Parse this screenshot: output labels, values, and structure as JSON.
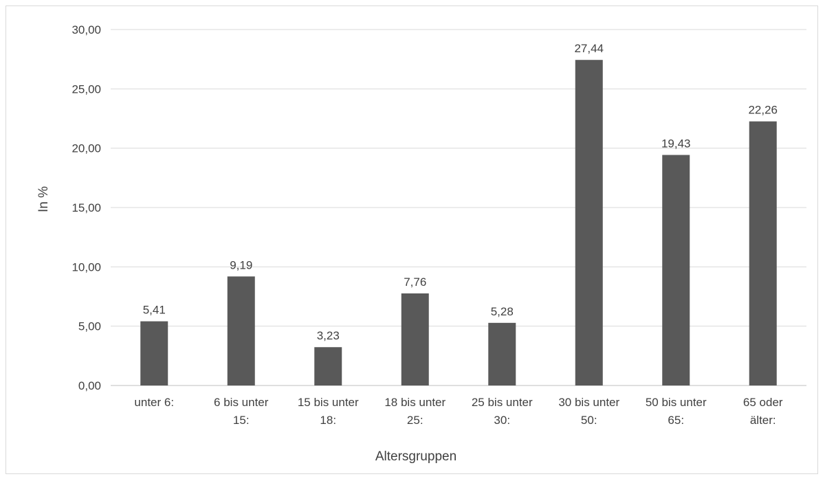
{
  "chart_data": {
    "type": "bar",
    "title": "",
    "xlabel": "Altersgruppen",
    "ylabel": "In %",
    "ylim": [
      0,
      30
    ],
    "yticks": [
      "0,00",
      "5,00",
      "10,00",
      "15,00",
      "20,00",
      "25,00",
      "30,00"
    ],
    "ytick_values": [
      0,
      5,
      10,
      15,
      20,
      25,
      30
    ],
    "grid": true,
    "legend": "none",
    "bar_color": "#595959",
    "categories": [
      [
        "unter 6:"
      ],
      [
        "6 bis unter",
        "15:"
      ],
      [
        "15 bis unter",
        "18:"
      ],
      [
        "18 bis unter",
        "25:"
      ],
      [
        "25 bis unter",
        "30:"
      ],
      [
        "30 bis unter",
        "50:"
      ],
      [
        "50 bis unter",
        "65:"
      ],
      [
        "65 oder",
        "älter:"
      ]
    ],
    "values": [
      5.41,
      9.19,
      3.23,
      7.76,
      5.28,
      27.44,
      19.43,
      22.26
    ],
    "value_labels": [
      "5,41",
      "9,19",
      "3,23",
      "7,76",
      "5,28",
      "27,44",
      "19,43",
      "22,26"
    ]
  }
}
